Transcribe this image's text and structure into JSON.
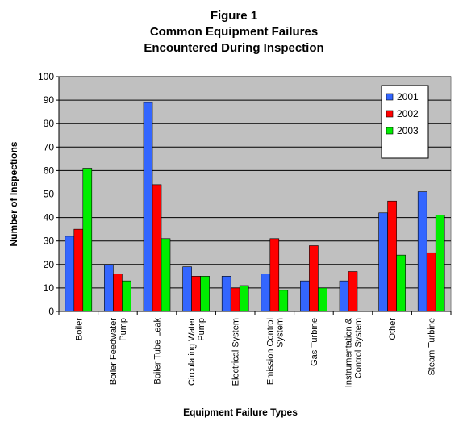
{
  "chart_data": {
    "type": "bar",
    "title_lines": [
      "Figure 1",
      "Common Equipment Failures",
      "Encountered During Inspection"
    ],
    "xlabel": "Equipment Failure Types",
    "ylabel": "Number of Inspections",
    "ylim": [
      0,
      100
    ],
    "yticks": [
      0,
      10,
      20,
      30,
      40,
      50,
      60,
      70,
      80,
      90,
      100
    ],
    "grid": true,
    "legend_position": "top-right",
    "categories": [
      [
        "Boiler"
      ],
      [
        "Boiler Feedwater",
        "Pump"
      ],
      [
        "Boiler Tube Leak"
      ],
      [
        "Circulating Water",
        "Pump"
      ],
      [
        "Electrical System"
      ],
      [
        "Emission Control",
        "System"
      ],
      [
        "Gas Turbine"
      ],
      [
        "Instrumentation &",
        "Control System"
      ],
      [
        "Other"
      ],
      [
        "Steam Turbine"
      ]
    ],
    "series": [
      {
        "name": "2001",
        "color": "#3366ff",
        "values": [
          32,
          20,
          89,
          19,
          15,
          16,
          13,
          13,
          42,
          51
        ]
      },
      {
        "name": "2002",
        "color": "#ff0000",
        "values": [
          35,
          16,
          54,
          15,
          10,
          31,
          28,
          17,
          47,
          25
        ]
      },
      {
        "name": "2003",
        "color": "#00ee00",
        "values": [
          61,
          13,
          31,
          15,
          11,
          9,
          10,
          0,
          24,
          41
        ]
      }
    ],
    "plot_background": "#c0c0c0"
  }
}
